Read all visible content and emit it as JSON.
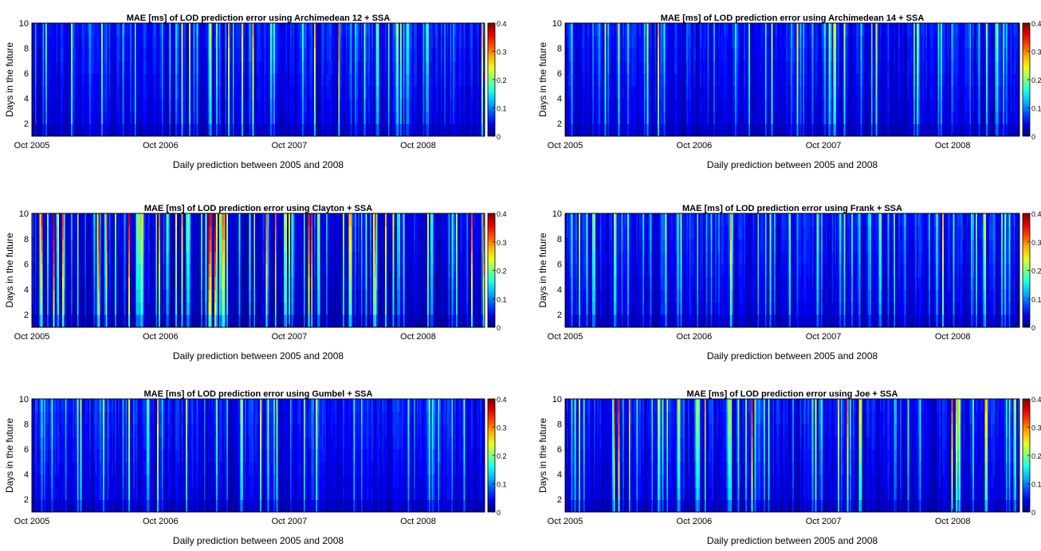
{
  "chart_data": [
    {
      "type": "heatmap",
      "title": "MAE [ms] of LOD prediction error using Archimedean 12 + SSA",
      "xlabel": "Daily prediction between 2005 and 2008",
      "ylabel": "Days in the future",
      "x_ticks": [
        "Oct 2005",
        "Oct 2006",
        "Oct 2007",
        "Oct 2008"
      ],
      "y_ticks": [
        "2",
        "4",
        "6",
        "8",
        "10"
      ],
      "ylim": [
        1,
        10
      ],
      "colorbar": {
        "colormap": "jet",
        "range": [
          0,
          0.4
        ],
        "ticks": [
          "0",
          "0.1",
          "0.2",
          "0.3",
          "0.4"
        ]
      },
      "profile": {
        "seed": 11,
        "base": 0.06,
        "spike_rate": 0.22,
        "spike_max": 0.17,
        "rare_rate": 0.02,
        "rare_max": 0.24
      }
    },
    {
      "type": "heatmap",
      "title": "MAE [ms] of LOD prediction error using Archimedean 14 + SSA",
      "xlabel": "Daily prediction between 2005 and 2008",
      "ylabel": "Days in the future",
      "x_ticks": [
        "Oct 2005",
        "Oct 2006",
        "Oct 2007",
        "Oct 2008"
      ],
      "y_ticks": [
        "2",
        "4",
        "6",
        "8",
        "10"
      ],
      "ylim": [
        1,
        10
      ],
      "colorbar": {
        "colormap": "jet",
        "range": [
          0,
          0.4
        ],
        "ticks": [
          "0",
          "0.1",
          "0.2",
          "0.3",
          "0.4"
        ]
      },
      "profile": {
        "seed": 29,
        "base": 0.06,
        "spike_rate": 0.2,
        "spike_max": 0.17,
        "rare_rate": 0.02,
        "rare_max": 0.26
      }
    },
    {
      "type": "heatmap",
      "title": "MAE [ms] of LOD prediction error using Clayton + SSA",
      "xlabel": "Daily prediction between 2005 and 2008",
      "ylabel": "Days in the future",
      "x_ticks": [
        "Oct 2005",
        "Oct 2006",
        "Oct 2007",
        "Oct 2008"
      ],
      "y_ticks": [
        "2",
        "4",
        "6",
        "8",
        "10"
      ],
      "ylim": [
        1,
        10
      ],
      "colorbar": {
        "colormap": "jet",
        "range": [
          0,
          0.4
        ],
        "ticks": [
          "0",
          "0.1",
          "0.2",
          "0.3",
          "0.4"
        ]
      },
      "profile": {
        "seed": 43,
        "base": 0.04,
        "spike_rate": 0.35,
        "spike_max": 0.22,
        "rare_rate": 0.06,
        "rare_max": 0.36
      }
    },
    {
      "type": "heatmap",
      "title": "MAE [ms] of LOD prediction error using Frank + SSA",
      "xlabel": "Daily prediction between 2005 and 2008",
      "ylabel": "Days in the future",
      "x_ticks": [
        "Oct 2005",
        "Oct 2006",
        "Oct 2007",
        "Oct 2008"
      ],
      "y_ticks": [
        "2",
        "4",
        "6",
        "8",
        "10"
      ],
      "ylim": [
        1,
        10
      ],
      "colorbar": {
        "colormap": "jet",
        "range": [
          0,
          0.4
        ],
        "ticks": [
          "0",
          "0.1",
          "0.2",
          "0.3",
          "0.4"
        ]
      },
      "profile": {
        "seed": 57,
        "base": 0.06,
        "spike_rate": 0.2,
        "spike_max": 0.17,
        "rare_rate": 0.02,
        "rare_max": 0.25
      }
    },
    {
      "type": "heatmap",
      "title": "MAE [ms] of LOD prediction error using Gumbel + SSA",
      "xlabel": "Daily prediction between 2005 and 2008",
      "ylabel": "Days in the future",
      "x_ticks": [
        "Oct 2005",
        "Oct 2006",
        "Oct 2007",
        "Oct 2008"
      ],
      "y_ticks": [
        "2",
        "4",
        "6",
        "8",
        "10"
      ],
      "ylim": [
        1,
        10
      ],
      "colorbar": {
        "colormap": "jet",
        "range": [
          0,
          0.4
        ],
        "ticks": [
          "0",
          "0.1",
          "0.2",
          "0.3",
          "0.4"
        ]
      },
      "profile": {
        "seed": 71,
        "base": 0.06,
        "spike_rate": 0.22,
        "spike_max": 0.17,
        "rare_rate": 0.02,
        "rare_max": 0.25
      }
    },
    {
      "type": "heatmap",
      "title": "MAE [ms] of LOD prediction error using Joe + SSA",
      "xlabel": "Daily prediction between 2005 and 2008",
      "ylabel": "Days in the future",
      "x_ticks": [
        "Oct 2005",
        "Oct 2006",
        "Oct 2007",
        "Oct 2008"
      ],
      "y_ticks": [
        "2",
        "4",
        "6",
        "8",
        "10"
      ],
      "ylim": [
        1,
        10
      ],
      "colorbar": {
        "colormap": "jet",
        "range": [
          0,
          0.4
        ],
        "ticks": [
          "0",
          "0.1",
          "0.2",
          "0.3",
          "0.4"
        ]
      },
      "profile": {
        "seed": 89,
        "base": 0.06,
        "spike_rate": 0.24,
        "spike_max": 0.19,
        "rare_rate": 0.04,
        "rare_max": 0.3
      }
    }
  ]
}
